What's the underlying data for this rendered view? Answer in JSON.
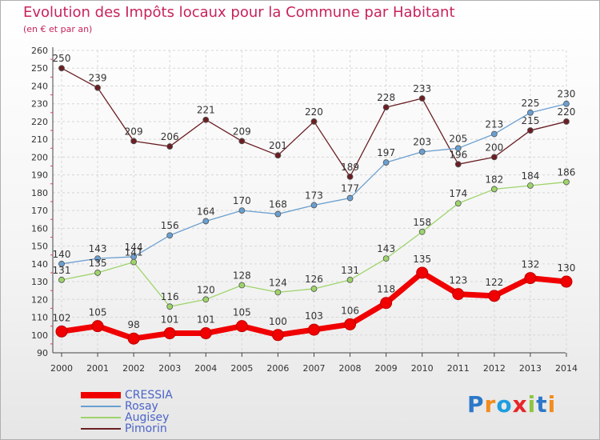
{
  "title": "Evolution des Impôts locaux pour la Commune par Habitant",
  "subtitle": "(en € et par an)",
  "logo": {
    "text": "Proxiti",
    "letters": [
      "P",
      "r",
      "o",
      "x",
      "i",
      "t",
      "i"
    ],
    "colors": [
      "#2d78c8",
      "#f28c1e",
      "#1e9de0",
      "#e8262b",
      "#8cc63f",
      "#2d78c8",
      "#f28c1e"
    ]
  },
  "chart_data": {
    "type": "line",
    "categories": [
      "2000",
      "2001",
      "2002",
      "2003",
      "2004",
      "2005",
      "2006",
      "2007",
      "2008",
      "2009",
      "2010",
      "2011",
      "2012",
      "2013",
      "2014"
    ],
    "ylim": [
      90,
      260
    ],
    "yticks": [
      90,
      100,
      110,
      120,
      130,
      140,
      150,
      160,
      170,
      180,
      190,
      200,
      210,
      220,
      230,
      240,
      250,
      260
    ],
    "grid": true,
    "legend_position": "bottom-left",
    "series": [
      {
        "name": "Pimorin",
        "color": "#6b1f24",
        "values": [
          250,
          239,
          209,
          206,
          221,
          209,
          201,
          220,
          189,
          228,
          233,
          196,
          200,
          215,
          220
        ]
      },
      {
        "name": "Rosay",
        "color": "#6a9fd0",
        "values": [
          140,
          143,
          144,
          156,
          164,
          170,
          168,
          173,
          177,
          197,
          203,
          205,
          213,
          225,
          230
        ]
      },
      {
        "name": "Augisey",
        "color": "#9ed46a",
        "values": [
          131,
          135,
          141,
          116,
          120,
          128,
          124,
          126,
          131,
          143,
          158,
          174,
          182,
          184,
          186
        ]
      },
      {
        "name": "CRESSIA",
        "color": "#f00000",
        "values": [
          102,
          105,
          98,
          101,
          101,
          105,
          100,
          103,
          106,
          118,
          135,
          123,
          122,
          132,
          130
        ]
      }
    ],
    "legend_order": [
      "CRESSIA",
      "Rosay",
      "Augisey",
      "Pimorin"
    ]
  }
}
